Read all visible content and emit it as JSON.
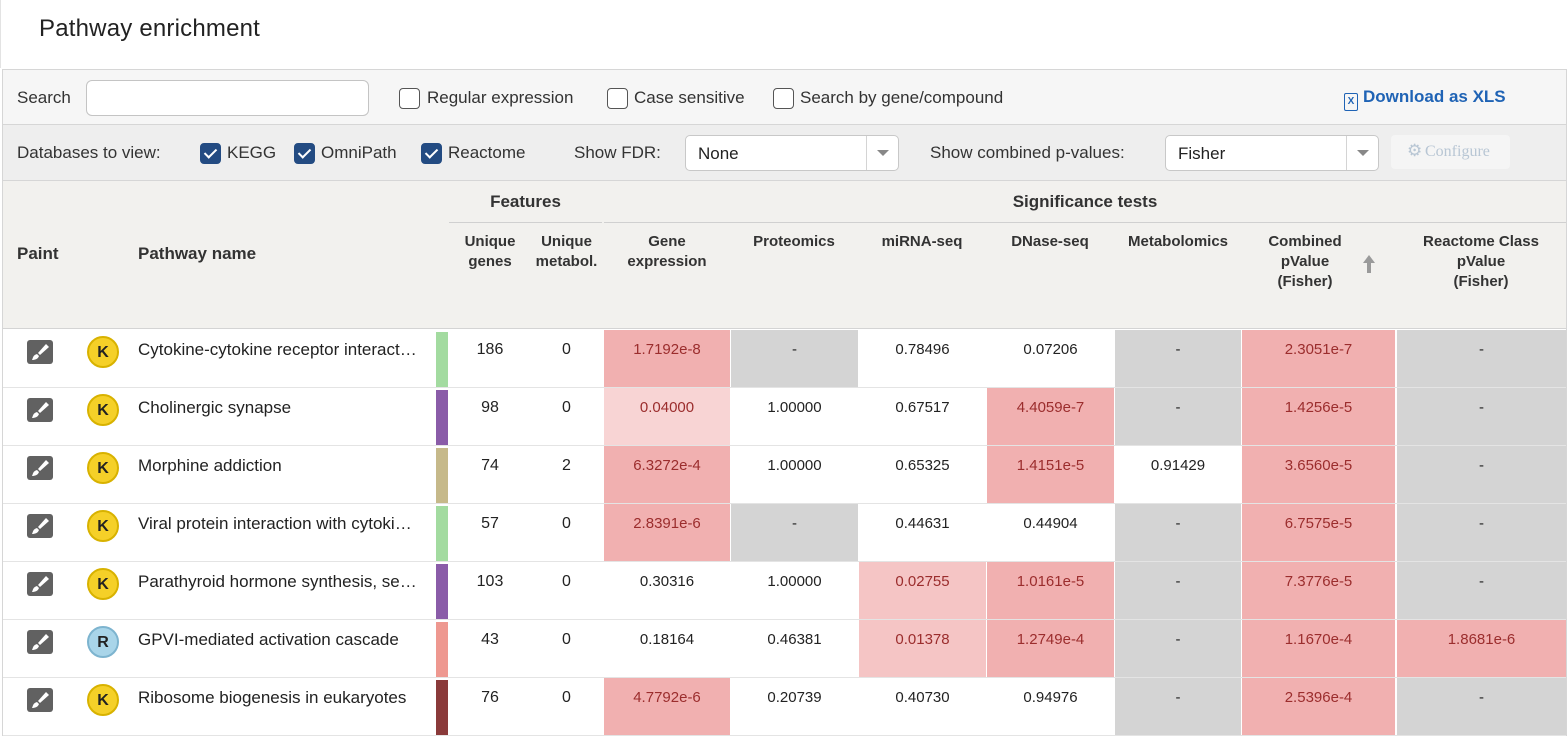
{
  "page_title": "Pathway enrichment",
  "search": {
    "label": "Search",
    "value": "",
    "placeholder": ""
  },
  "options": {
    "regex_label": "Regular expression",
    "case_label": "Case sensitive",
    "gene_label": "Search by gene/compound",
    "download_label": "Download as XLS"
  },
  "databases": {
    "label": "Databases to view:",
    "items": [
      {
        "name": "KEGG",
        "checked": true
      },
      {
        "name": "OmniPath",
        "checked": true
      },
      {
        "name": "Reactome",
        "checked": true
      }
    ]
  },
  "fdr": {
    "label": "Show FDR:",
    "value": "None"
  },
  "combined": {
    "label": "Show combined p-values:",
    "value": "Fisher"
  },
  "configure_label": "Configure",
  "columns": {
    "paint": "Paint",
    "pathway_name": "Pathway name",
    "features_group": "Features",
    "significance_group": "Significance tests",
    "unique_genes": [
      "Unique",
      "genes"
    ],
    "unique_metabol": [
      "Unique",
      "metabol."
    ],
    "gene_expression": [
      "Gene",
      "expression"
    ],
    "proteomics": "Proteomics",
    "mirna_seq": "miRNA-seq",
    "dnase_seq": "DNase-seq",
    "metabolomics": "Metabolomics",
    "combined_pvalue": [
      "Combined",
      "pValue",
      "(Fisher)"
    ],
    "reactome_class": [
      "Reactome Class",
      "pValue",
      "(Fisher)"
    ]
  },
  "colors": {
    "kegg_badge": "#f5d028",
    "reactome_badge": "#a9d5e9",
    "significant": "#f1b0b0",
    "not_available": "#d4d4d4"
  },
  "rows": [
    {
      "badge": "K",
      "name": "Cytokine-cytokine receptor interaction",
      "bar_color": "#a3dba0",
      "genes": "186",
      "metabol": "0",
      "gene_expression": "1.7192e-8",
      "proteomics": "-",
      "mirna": "0.78496",
      "dnase": "0.07206",
      "metabolomics": "-",
      "combined": "2.3051e-7",
      "reactome": "-"
    },
    {
      "badge": "K",
      "name": "Cholinergic synapse",
      "bar_color": "#8a5ca8",
      "genes": "98",
      "metabol": "0",
      "gene_expression": "0.04000",
      "proteomics": "1.00000",
      "mirna": "0.67517",
      "dnase": "4.4059e-7",
      "metabolomics": "-",
      "combined": "1.4256e-5",
      "reactome": "-"
    },
    {
      "badge": "K",
      "name": "Morphine addiction",
      "bar_color": "#c6b98a",
      "genes": "74",
      "metabol": "2",
      "gene_expression": "6.3272e-4",
      "proteomics": "1.00000",
      "mirna": "0.65325",
      "dnase": "1.4151e-5",
      "metabolomics": "0.91429",
      "combined": "3.6560e-5",
      "reactome": "-"
    },
    {
      "badge": "K",
      "name": "Viral protein interaction with cytokine and cytokine receptor",
      "bar_color": "#a3dba0",
      "genes": "57",
      "metabol": "0",
      "gene_expression": "2.8391e-6",
      "proteomics": "-",
      "mirna": "0.44631",
      "dnase": "0.44904",
      "metabolomics": "-",
      "combined": "6.7575e-5",
      "reactome": "-"
    },
    {
      "badge": "K",
      "name": "Parathyroid hormone synthesis, secretion and action",
      "bar_color": "#8a5ca8",
      "genes": "103",
      "metabol": "0",
      "gene_expression": "0.30316",
      "proteomics": "1.00000",
      "mirna": "0.02755",
      "dnase": "1.0161e-5",
      "metabolomics": "-",
      "combined": "7.3776e-5",
      "reactome": "-"
    },
    {
      "badge": "R",
      "name": "GPVI-mediated activation cascade",
      "bar_color": "#ee9890",
      "genes": "43",
      "metabol": "0",
      "gene_expression": "0.18164",
      "proteomics": "0.46381",
      "mirna": "0.01378",
      "dnase": "1.2749e-4",
      "metabolomics": "-",
      "combined": "1.1670e-4",
      "reactome": "1.8681e-6"
    },
    {
      "badge": "K",
      "name": "Ribosome biogenesis in eukaryotes",
      "bar_color": "#8a3a3a",
      "genes": "76",
      "metabol": "0",
      "gene_expression": "4.7792e-6",
      "proteomics": "0.20739",
      "mirna": "0.40730",
      "dnase": "0.94976",
      "metabolomics": "-",
      "combined": "2.5396e-4",
      "reactome": "-"
    }
  ]
}
